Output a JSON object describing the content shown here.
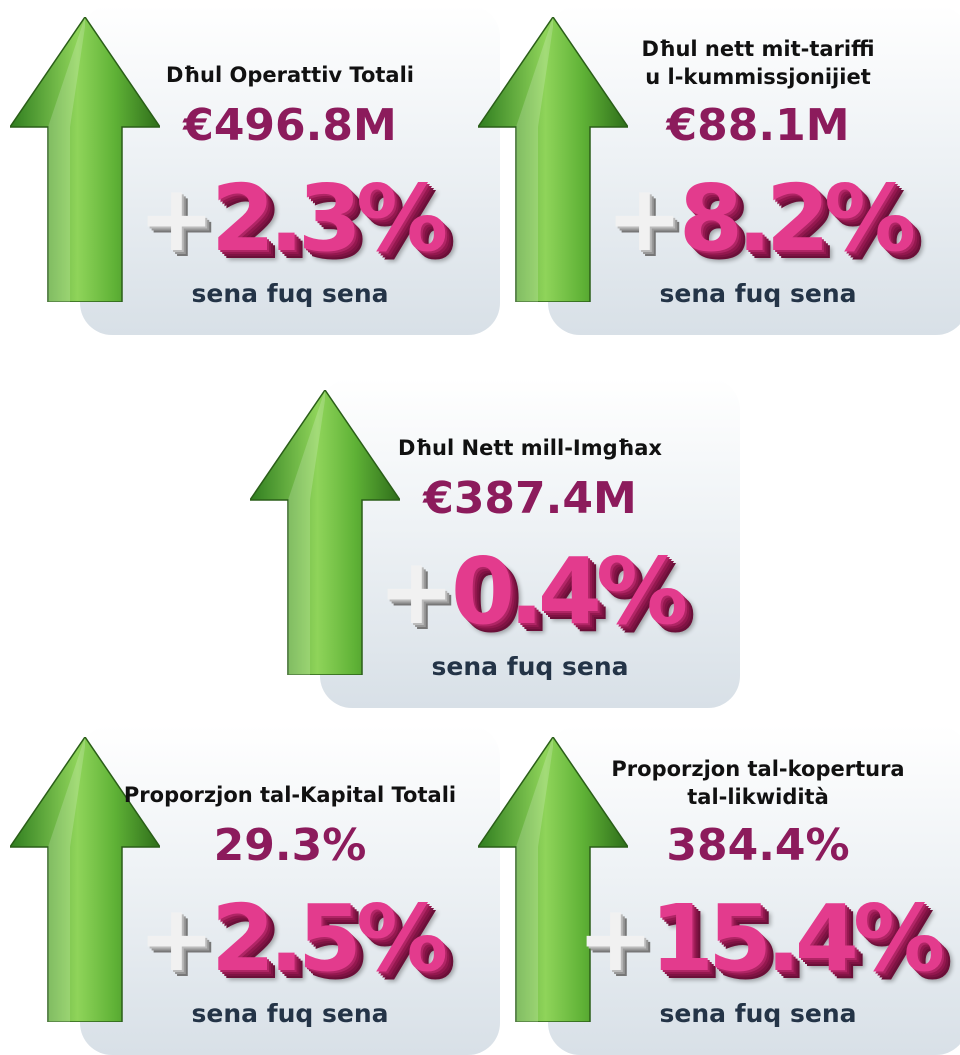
{
  "cards": [
    {
      "title": [
        "Dħul Operattiv Totali"
      ],
      "value": "€496.8M",
      "change_sign": "+",
      "change": "2.3%",
      "note": "sena fuq sena"
    },
    {
      "title": [
        "Dħul nett mit-tariffi",
        "u l-kummissjonijiet"
      ],
      "value": "€88.1M",
      "change_sign": "+",
      "change": "8.2%",
      "note": "sena fuq sena"
    },
    {
      "title": [
        "Dħul Nett mill-Imgħax"
      ],
      "value": "€387.4M",
      "change_sign": "+",
      "change": "0.4%",
      "note": "sena fuq sena"
    },
    {
      "title": [
        "Proporzjon tal-Kapital Totali"
      ],
      "value": "29.3%",
      "change_sign": "+",
      "change": "2.5%",
      "note": "sena fuq sena"
    },
    {
      "title": [
        "Proporzjon tal-kopertura",
        "tal-likwidità"
      ],
      "value": "384.4%",
      "change_sign": "+",
      "change": "15.4%",
      "note": "sena fuq sena"
    }
  ]
}
